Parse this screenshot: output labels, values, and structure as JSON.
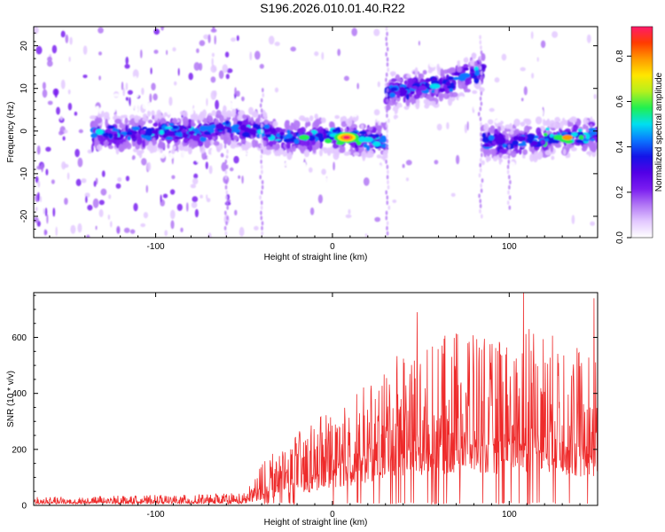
{
  "figure_title": "S196.2026.010.01.40.R22",
  "colors": {
    "snr_line": "#ee2b2b",
    "spectrogram_palette": [
      "#ffffff",
      "#e3c9ff",
      "#b277f5",
      "#7a1cf0",
      "#5200e6",
      "#1414e8",
      "#0a78ff",
      "#00e0f0",
      "#20f050",
      "#b4f01e",
      "#ffe600",
      "#ff9a00",
      "#ff3c00",
      "#ff1a6a"
    ]
  },
  "chart_data": [
    {
      "type": "heatmap",
      "title": "",
      "xlabel": "Height of straight line (km)",
      "ylabel": "Frequency (Hz)",
      "xlim": [
        -169,
        150
      ],
      "ylim": [
        -25,
        24.5
      ],
      "xticks": [
        -100,
        0,
        100
      ],
      "yticks": [
        -20,
        -10,
        0,
        10,
        20
      ],
      "colorbar": {
        "label": "Normalized spectral amplitude",
        "range": [
          0,
          0.93
        ],
        "ticks": [
          "0.0",
          "0.2",
          "0.4",
          "0.6",
          "0.8"
        ],
        "tick_values": [
          0,
          0.2,
          0.4,
          0.6,
          0.8
        ]
      },
      "ridge": {
        "description": "dominant frequency track",
        "segments": [
          {
            "x": [
              -135,
              -120,
              -100,
              -80,
              -60,
              -40,
              -30,
              -20,
              -10,
              0,
              10,
              20,
              30
            ],
            "freq": [
              -0.5,
              -1,
              0,
              -0.5,
              0.5,
              0,
              -1.5,
              -1.5,
              -1,
              -1,
              -1.5,
              -2,
              -2
            ]
          },
          {
            "x": [
              31,
              45,
              55,
              65,
              75,
              85
            ],
            "freq": [
              9,
              10,
              10.5,
              11,
              13,
              14
            ]
          },
          {
            "x": [
              86,
              100,
              110,
              120,
              130,
              140,
              150
            ],
            "freq": [
              -2,
              -3,
              -2,
              -2,
              -1.5,
              -1,
              -1
            ]
          }
        ],
        "peak": {
          "x": 8,
          "freq": -1.5,
          "amplitude": 0.93
        }
      }
    },
    {
      "type": "line",
      "title": "",
      "xlabel": "Height of straight line (km)",
      "ylabel": "SNR (10 * v/v)",
      "xlim": [
        -169,
        150
      ],
      "ylim": [
        0,
        760
      ],
      "xticks": [
        -100,
        0,
        100
      ],
      "yticks": [
        0,
        200,
        400,
        600
      ],
      "series": [
        {
          "name": "SNR",
          "envelope": {
            "x": [
              -169,
              -120,
              -80,
              -50,
              -40,
              -30,
              -20,
              -10,
              0,
              10,
              20,
              30,
              40,
              50,
              60,
              70,
              80,
              90,
              100,
              110,
              120,
              130,
              140,
              150
            ],
            "low": [
              5,
              5,
              5,
              5,
              20,
              30,
              40,
              50,
              60,
              70,
              80,
              90,
              100,
              100,
              110,
              110,
              120,
              110,
              110,
              120,
              120,
              110,
              100,
              100
            ],
            "high": [
              30,
              35,
              40,
              45,
              150,
              230,
              260,
              300,
              350,
              380,
              440,
              480,
              580,
              560,
              600,
              620,
              620,
              580,
              600,
              650,
              620,
              600,
              580,
              540
            ]
          },
          "peaks": [
            {
              "x": 48,
              "y": 690
            },
            {
              "x": 108,
              "y": 760
            },
            {
              "x": 148,
              "y": 740
            }
          ]
        }
      ]
    }
  ]
}
